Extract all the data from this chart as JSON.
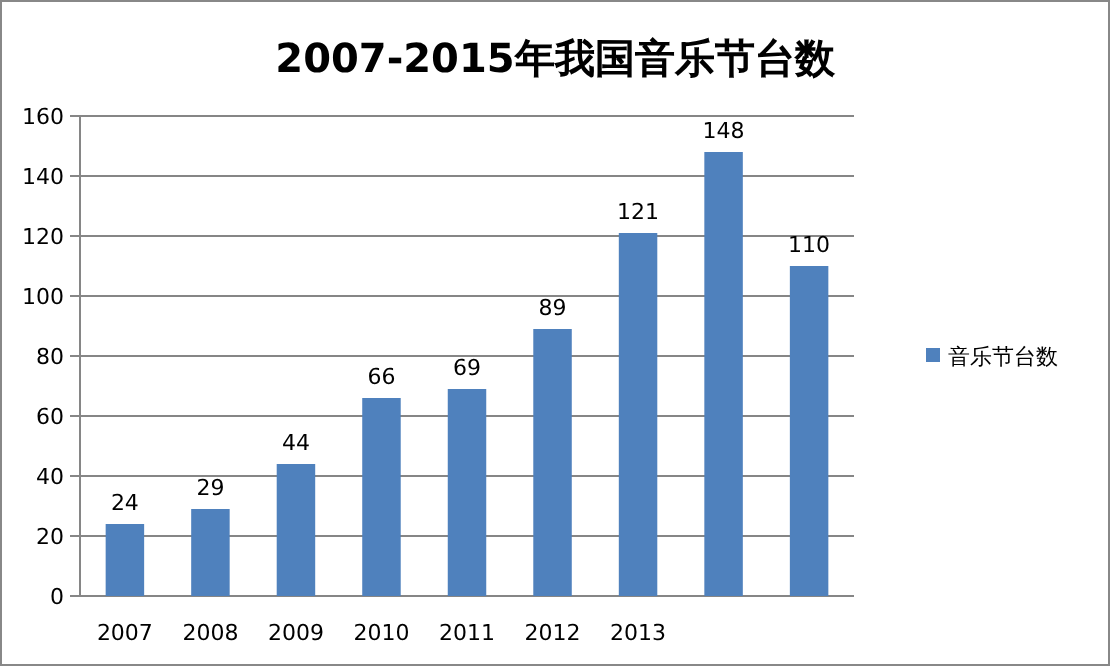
{
  "chart_data": {
    "type": "bar",
    "title": "2007-2015年我国音乐节台数",
    "categories": [
      "2007",
      "2008",
      "2009",
      "2010",
      "2011",
      "2012",
      "2013",
      null,
      null
    ],
    "series": [
      {
        "name": "音乐节台数",
        "color": "#4f81bd",
        "values": [
          24,
          29,
          44,
          66,
          69,
          89,
          121,
          148,
          110
        ]
      }
    ],
    "ylim": [
      0,
      160
    ],
    "yticks": [
      0,
      20,
      40,
      60,
      80,
      100,
      120,
      140,
      160
    ],
    "grid": "y",
    "legend": "right",
    "data_labels": true
  }
}
